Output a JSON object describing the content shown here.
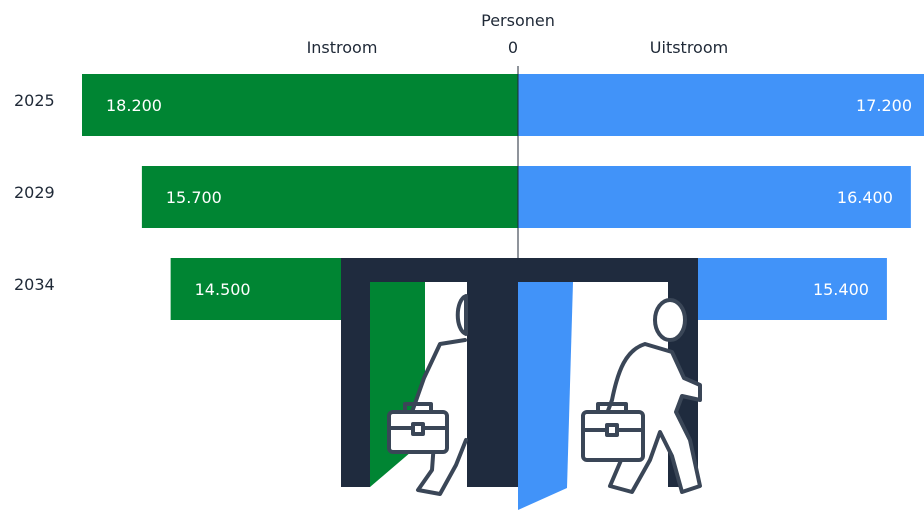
{
  "chart_data": {
    "type": "bar",
    "title": "Personen",
    "categories": [
      "2025",
      "2029",
      "2034"
    ],
    "series": [
      {
        "name": "Instroom",
        "values": [
          18200,
          15700,
          14500
        ],
        "labels": [
          "18.200",
          "15.700",
          "14.500"
        ],
        "color": "#008533"
      },
      {
        "name": "Uitstroom",
        "values": [
          17200,
          16400,
          15400
        ],
        "labels": [
          "17.200",
          "16.400",
          "15.400"
        ],
        "color": "#4193f9"
      }
    ],
    "zero_label": "0",
    "xlim": [
      -18200,
      18200
    ],
    "grid": false,
    "legend": "top"
  },
  "illustration": {
    "door_frame_color": "#1f2b3e",
    "door_left_color": "#008533",
    "door_right_color": "#4193f9",
    "icons": [
      "person-entering-icon",
      "person-leaving-icon",
      "briefcase-icon"
    ]
  }
}
